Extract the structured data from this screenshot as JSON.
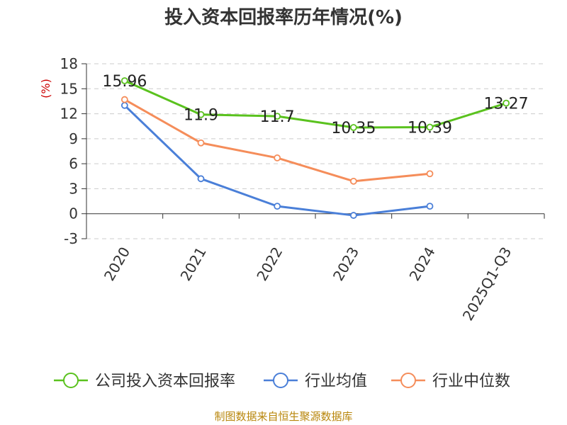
{
  "chart_data": {
    "type": "line",
    "title": "投入资本回报率历年情况(%)",
    "ylabel": "(%)",
    "xlabel": "",
    "categories": [
      "2020",
      "2021",
      "2022",
      "2023",
      "2024",
      "2025Q1-Q3"
    ],
    "ylim": [
      -3,
      18
    ],
    "yticks": [
      -3,
      0,
      3,
      6,
      9,
      12,
      15,
      18
    ],
    "grid": true,
    "legend_position": "bottom",
    "series": [
      {
        "name": "公司投入资本回报率",
        "color": "#5ac21e",
        "values": [
          15.96,
          11.9,
          11.7,
          10.35,
          10.39,
          13.27
        ],
        "labels": [
          "15.96",
          "11.9",
          "11.7",
          "10.35",
          "10.39",
          "13.27"
        ]
      },
      {
        "name": "行业均值",
        "color": "#4a7fd8",
        "values": [
          13.0,
          4.2,
          0.9,
          -0.2,
          0.9,
          null
        ]
      },
      {
        "name": "行业中位数",
        "color": "#f58d5a",
        "values": [
          13.7,
          8.5,
          6.7,
          3.9,
          4.8,
          null
        ]
      }
    ]
  },
  "source": "制图数据来自恒生聚源数据库"
}
